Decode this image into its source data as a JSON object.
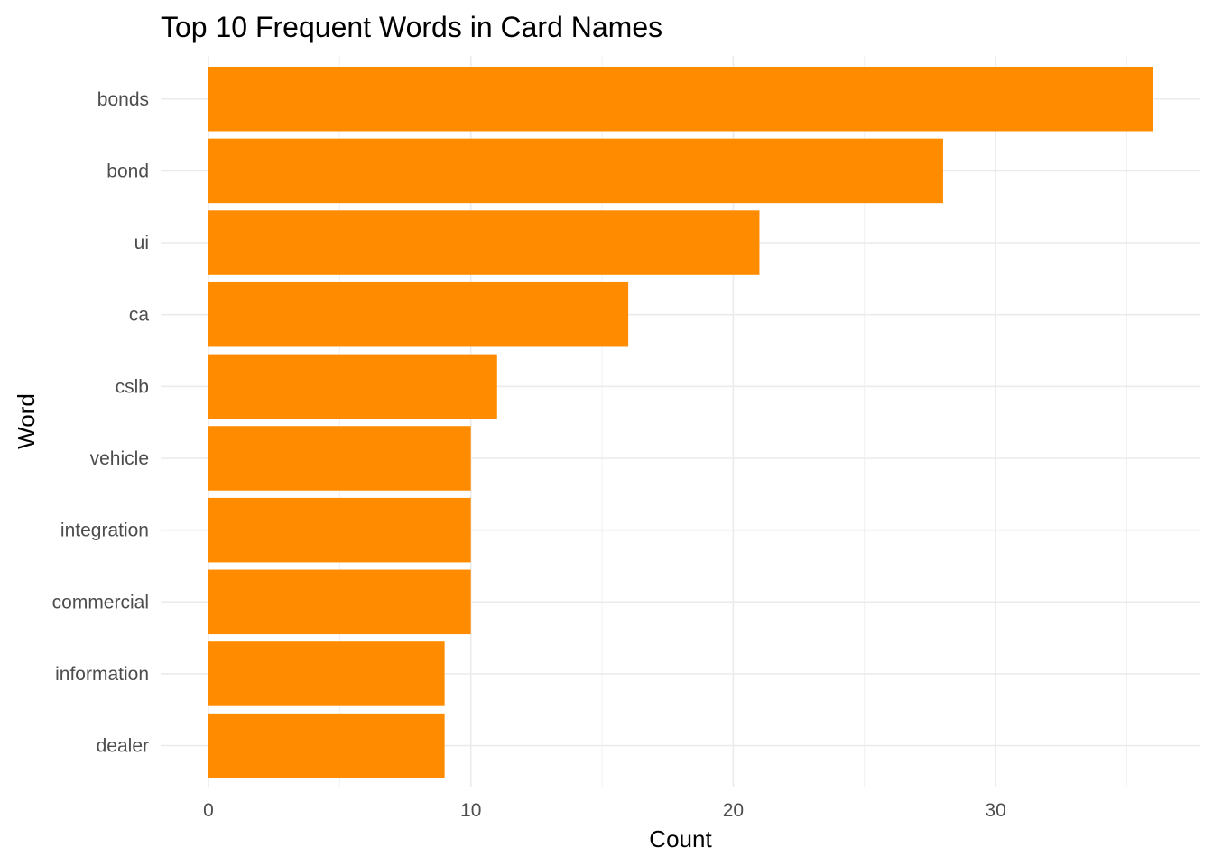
{
  "chart_data": {
    "type": "bar",
    "orientation": "horizontal",
    "title": "Top 10 Frequent Words in Card Names",
    "xlabel": "Count",
    "ylabel": "Word",
    "categories": [
      "bonds",
      "bond",
      "ui",
      "ca",
      "cslb",
      "vehicle",
      "integration",
      "commercial",
      "information",
      "dealer"
    ],
    "values": [
      36,
      28,
      21,
      16,
      11,
      10,
      10,
      10,
      9,
      9
    ],
    "xlim": [
      0,
      37
    ],
    "x_ticks": [
      0,
      10,
      20,
      30
    ],
    "bar_color": "#FF8C00",
    "grid": true,
    "legend": "none"
  }
}
